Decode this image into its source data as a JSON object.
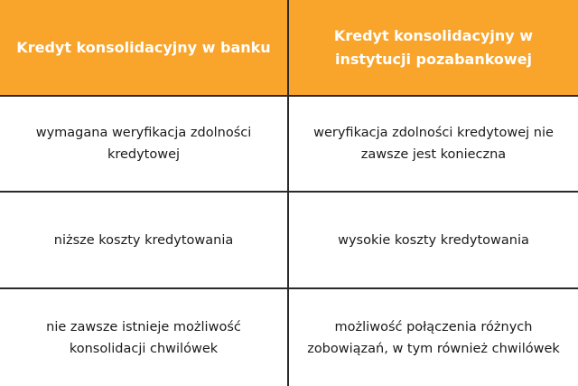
{
  "colors": {
    "header_bg": "#f9a42a",
    "header_text": "#ffffff",
    "border": "#2a2a2a"
  },
  "headers": [
    "Kredyt konsolidacyjny w banku",
    "Kredyt konsolidacyjny w instytucji pozabankowej"
  ],
  "rows": [
    [
      "wymagana weryfikacja zdolności kredytowej",
      "weryfikacja zdolności kredytowej nie zawsze jest konieczna"
    ],
    [
      "niższe koszty kredytowania",
      "wysokie koszty kredytowania"
    ],
    [
      "nie zawsze istnieje możliwość konsolidacji chwilówek",
      "możliwość połączenia różnych zobowiązań, w tym również chwilówek"
    ]
  ]
}
